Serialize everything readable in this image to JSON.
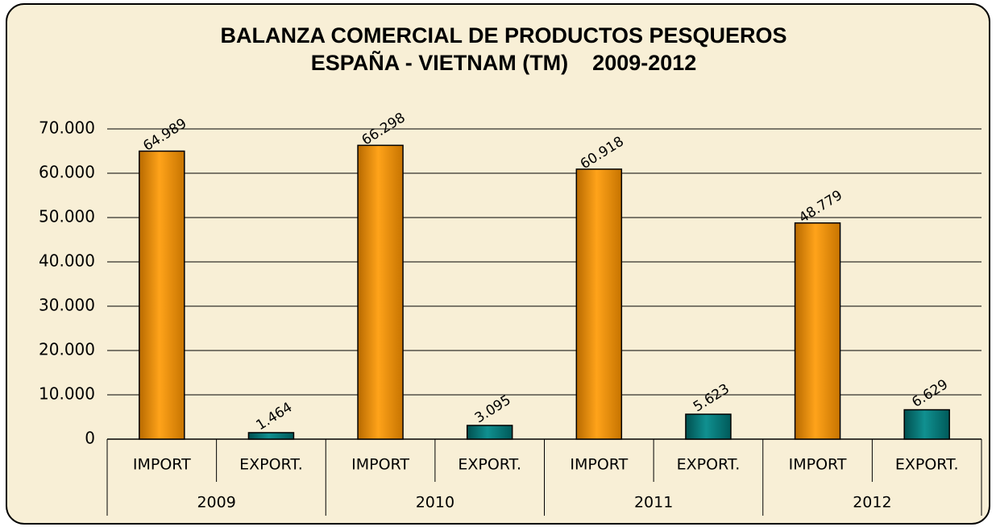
{
  "chart_data": {
    "type": "bar",
    "title": [
      "BALANZA COMERCIAL DE PRODUCTOS PESQUEROS",
      "ESPAÑA - VIETNAM (TM)    2009-2012"
    ],
    "categories": [
      "IMPORT",
      "EXPORT.",
      "IMPORT",
      "EXPORT.",
      "IMPORT",
      "EXPORT.",
      "IMPORT",
      "EXPORT."
    ],
    "groups": [
      "2009",
      "2010",
      "2011",
      "2012"
    ],
    "values": [
      64989,
      1464,
      66298,
      3095,
      60918,
      5623,
      48779,
      6629
    ],
    "value_labels": [
      "64.989",
      "1.464",
      "66.298",
      "3.095",
      "60.918",
      "5.623",
      "48.779",
      "6.629"
    ],
    "colors": [
      "#ff9900",
      "#008080",
      "#ff9900",
      "#008080",
      "#ff9900",
      "#008080",
      "#ff9900",
      "#008080"
    ],
    "ylim": [
      0,
      70000
    ],
    "yticks": [
      {
        "value": 0,
        "label": "0"
      },
      {
        "value": 10000,
        "label": "10.000"
      },
      {
        "value": 20000,
        "label": "20.000"
      },
      {
        "value": 30000,
        "label": "30.000"
      },
      {
        "value": 40000,
        "label": "40.000"
      },
      {
        "value": 50000,
        "label": "50.000"
      },
      {
        "value": 60000,
        "label": "60.000"
      },
      {
        "value": 70000,
        "label": "70.000"
      }
    ],
    "grid": true
  }
}
